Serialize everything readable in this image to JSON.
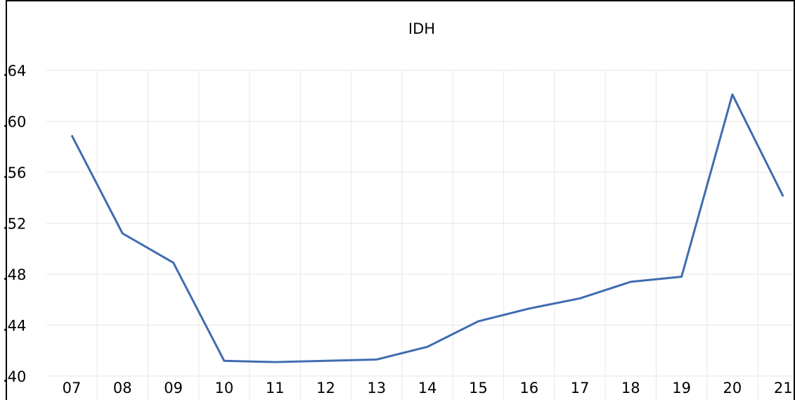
{
  "chart_data": {
    "type": "line",
    "title": "IDH",
    "categories": [
      "07",
      "08",
      "09",
      "10",
      "11",
      "12",
      "13",
      "14",
      "15",
      "16",
      "17",
      "18",
      "19",
      "20",
      "21"
    ],
    "series": [
      {
        "name": "IDH",
        "color": "#3f6cb0",
        "values": [
          0.589,
          0.512,
          0.489,
          0.412,
          0.411,
          0.412,
          0.413,
          0.423,
          0.443,
          0.453,
          0.461,
          0.474,
          0.478,
          0.621,
          0.541
        ]
      }
    ],
    "ylim": [
      0.4,
      0.64
    ],
    "yticks": [
      {
        "value": 0.4,
        "label": ".40"
      },
      {
        "value": 0.44,
        "label": ".44"
      },
      {
        "value": 0.48,
        "label": ".48"
      },
      {
        "value": 0.52,
        "label": ".52"
      },
      {
        "value": 0.56,
        "label": ".56"
      },
      {
        "value": 0.6,
        "label": ".60"
      },
      {
        "value": 0.64,
        "label": ".64"
      }
    ],
    "grid": true
  }
}
